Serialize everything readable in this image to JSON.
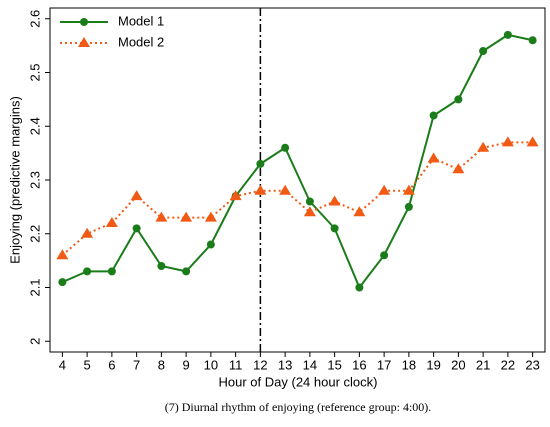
{
  "chart_data": {
    "type": "line",
    "x": [
      4,
      5,
      6,
      7,
      8,
      9,
      10,
      11,
      12,
      13,
      14,
      15,
      16,
      17,
      18,
      19,
      20,
      21,
      22,
      23
    ],
    "series": [
      {
        "name": "Model 1",
        "color": "#1a7d1a",
        "marker": "circle",
        "linestyle": "solid",
        "values": [
          2.11,
          2.13,
          2.13,
          2.21,
          2.14,
          2.13,
          2.18,
          2.27,
          2.33,
          2.36,
          2.26,
          2.21,
          2.1,
          2.16,
          2.25,
          2.42,
          2.45,
          2.54,
          2.57,
          2.56
        ]
      },
      {
        "name": "Model 2",
        "color": "#f05a14",
        "marker": "triangle",
        "linestyle": "dotted",
        "values": [
          2.16,
          2.2,
          2.22,
          2.27,
          2.23,
          2.23,
          2.23,
          2.27,
          2.28,
          2.28,
          2.24,
          2.26,
          2.24,
          2.28,
          2.28,
          2.34,
          2.32,
          2.36,
          2.37,
          2.37
        ]
      }
    ],
    "xlim": [
      3.5,
      23.5
    ],
    "xticks": [
      4,
      5,
      6,
      7,
      8,
      9,
      10,
      11,
      12,
      13,
      14,
      15,
      16,
      17,
      18,
      19,
      20,
      21,
      22,
      23
    ],
    "ylim": [
      1.98,
      2.62
    ],
    "yticks": [
      2,
      2.1,
      2.2,
      2.3,
      2.4,
      2.5,
      2.6
    ],
    "vline": 12,
    "xlabel": "Hour of Day (24 hour clock)",
    "ylabel": "Enjoying (predictive margins)",
    "legend": "top-left",
    "caption": "(7)   Diurnal rhythm of enjoying (reference group: 4:00)."
  }
}
